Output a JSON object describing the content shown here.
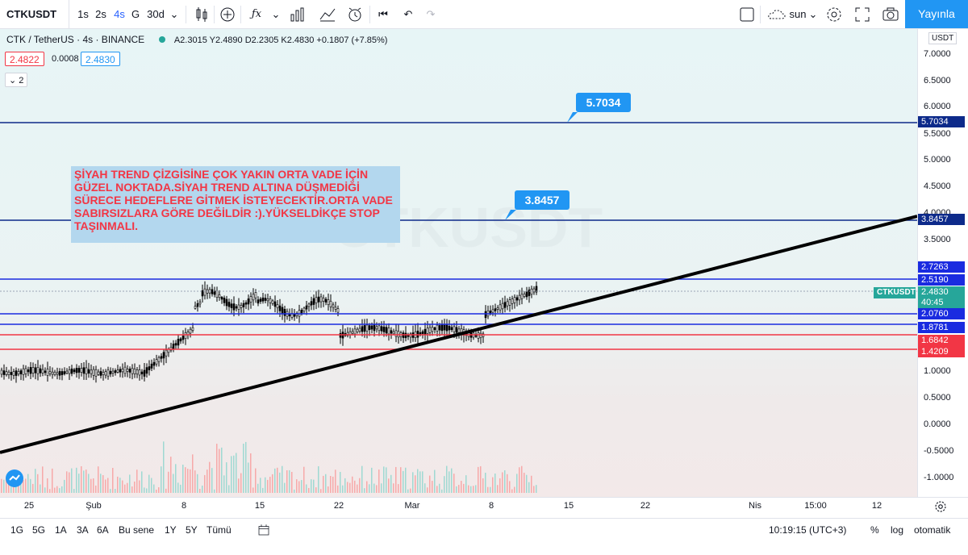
{
  "toolbar": {
    "symbol": "CTKUSDT",
    "intervals": [
      "1s",
      "2s",
      "4s",
      "G",
      "30d"
    ],
    "active_interval": "4s",
    "theme_label": "sun",
    "publish_label": "Yayınla",
    "icons": [
      "candles-icon",
      "add-compare-icon",
      "indicators-icon",
      "templates-icon",
      "bar-style-icon",
      "alert-icon",
      "replay-icon",
      "undo-icon",
      "redo-icon",
      "fullscreen-box-icon",
      "cloud-icon",
      "gear-icon",
      "expand-icon",
      "camera-icon"
    ]
  },
  "legend": {
    "title": "CTK / TetherUS · 4s · BINANCE",
    "ohlc": "A2.3015  Y2.4890  D2.2305  K2.4830  +0.1807 (+7.85%)",
    "bid": "2.4822",
    "spread": "0.0008",
    "ask": "2.4830",
    "indicators_count": "2"
  },
  "note_text": "ŞİYAH TREND ÇİZGİSİNE ÇOK YAKIN ORTA VADE İÇİN GÜZEL NOKTADA.SİYAH TREND ALTINA DÜŞMEDİĞİ SÜRECE HEDEFLERE GİTMEK İSTEYECEKTİR.ORTA VADE SABIRSIZLARA GÖRE DEĞİLDİR :).YÜKSELDİKÇE STOP TAŞINMALI.",
  "callouts": {
    "upper": "5.7034",
    "lower": "3.8457"
  },
  "axis": {
    "currency": "USDT",
    "ticks": [
      "7.0000",
      "6.5000",
      "6.0000",
      "5.5000",
      "5.0000",
      "4.5000",
      "4.0000",
      "3.5000",
      "1.0000",
      "0.5000",
      "0.0000",
      "-0.5000",
      "-1.0000"
    ],
    "price_labels": [
      {
        "text": "5.7034",
        "color": "#0d2a8a"
      },
      {
        "text": "3.8457",
        "color": "#0d2a8a"
      },
      {
        "text": "2.7263",
        "color": "#1a2be0"
      },
      {
        "text": "2.5190",
        "color": "#1a2be0"
      },
      {
        "text": "2.4830",
        "color": "#26a69a"
      },
      {
        "text": "40:45",
        "color": "#26a69a"
      },
      {
        "text": "2.0760",
        "color": "#1a2be0"
      },
      {
        "text": "1.8781",
        "color": "#1a2be0"
      },
      {
        "text": "1.6842",
        "color": "#f23645"
      },
      {
        "text": "1.4209",
        "color": "#f23645"
      }
    ],
    "symbol_tag": "CTKUSDT"
  },
  "time_axis": [
    "25",
    "Şub",
    "8",
    "15",
    "22",
    "Mar",
    "8",
    "15",
    "22",
    "Nis",
    "15:00",
    "12"
  ],
  "bottom": {
    "ranges": [
      "1G",
      "5G",
      "1A",
      "3A",
      "6A",
      "Bu sene",
      "1Y",
      "5Y",
      "Tümü"
    ],
    "clock": "10:19:15 (UTC+3)",
    "percent": "%",
    "log": "log",
    "auto": "otomatik"
  },
  "colors": {
    "accent": "#2196f3",
    "trend": "#000000",
    "support": "#f23645",
    "resistance": "#1a2be0",
    "target": "#0d2a8a"
  }
}
